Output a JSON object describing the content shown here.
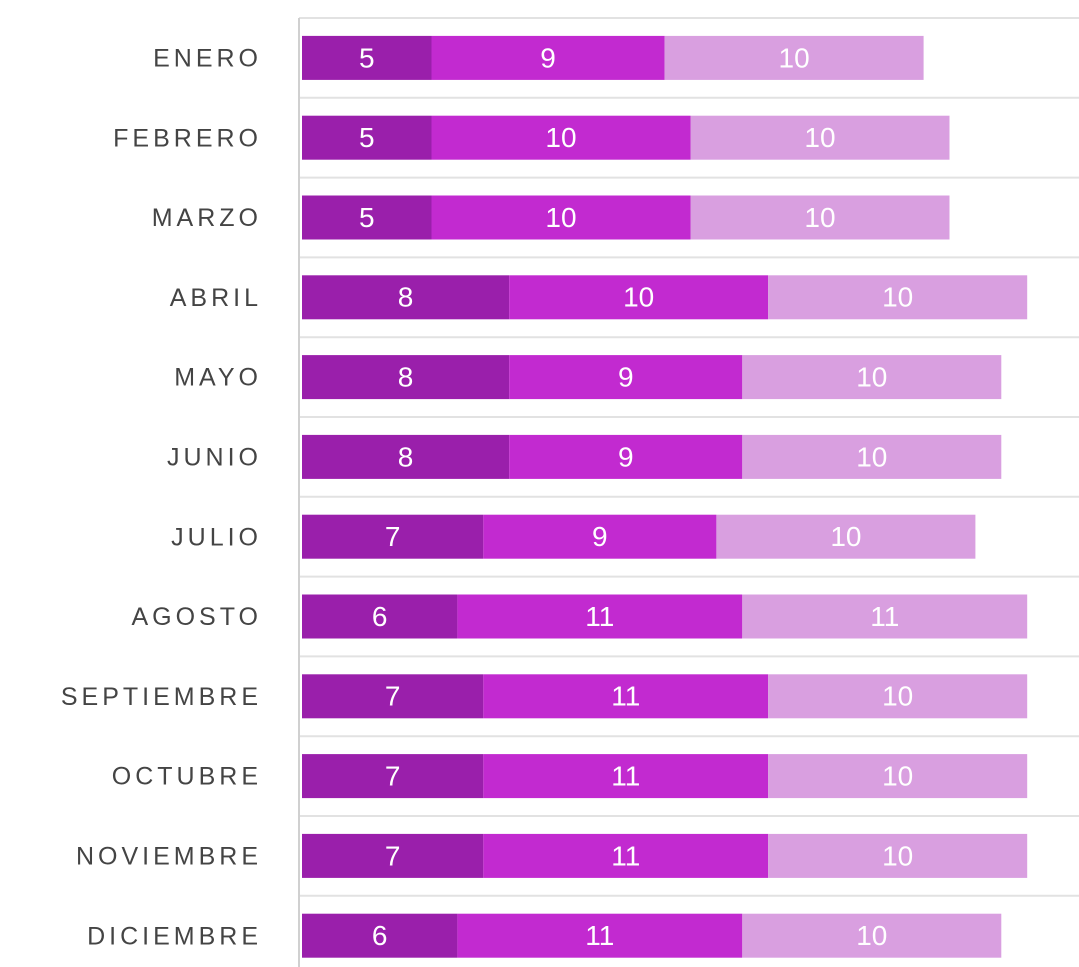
{
  "chart_data": {
    "type": "stacked-bar-horizontal",
    "categories": [
      "ENERO",
      "FEBRERO",
      "MARZO",
      "ABRIL",
      "MAYO",
      "JUNIO",
      "JULIO",
      "AGOSTO",
      "SEPTIEMBRE",
      "OCTUBRE",
      "NOVIEMBRE",
      "DICIEMBRE"
    ],
    "series": [
      {
        "color": "#9a1fab",
        "values": [
          5,
          5,
          5,
          8,
          8,
          8,
          7,
          6,
          7,
          7,
          7,
          6
        ]
      },
      {
        "color": "#c22ad0",
        "values": [
          9,
          10,
          10,
          10,
          9,
          9,
          9,
          11,
          11,
          11,
          11,
          11
        ]
      },
      {
        "color": "#d99fe0",
        "values": [
          10,
          10,
          10,
          10,
          10,
          10,
          10,
          11,
          10,
          10,
          10,
          10
        ]
      }
    ],
    "xlim": [
      0,
      30
    ]
  }
}
